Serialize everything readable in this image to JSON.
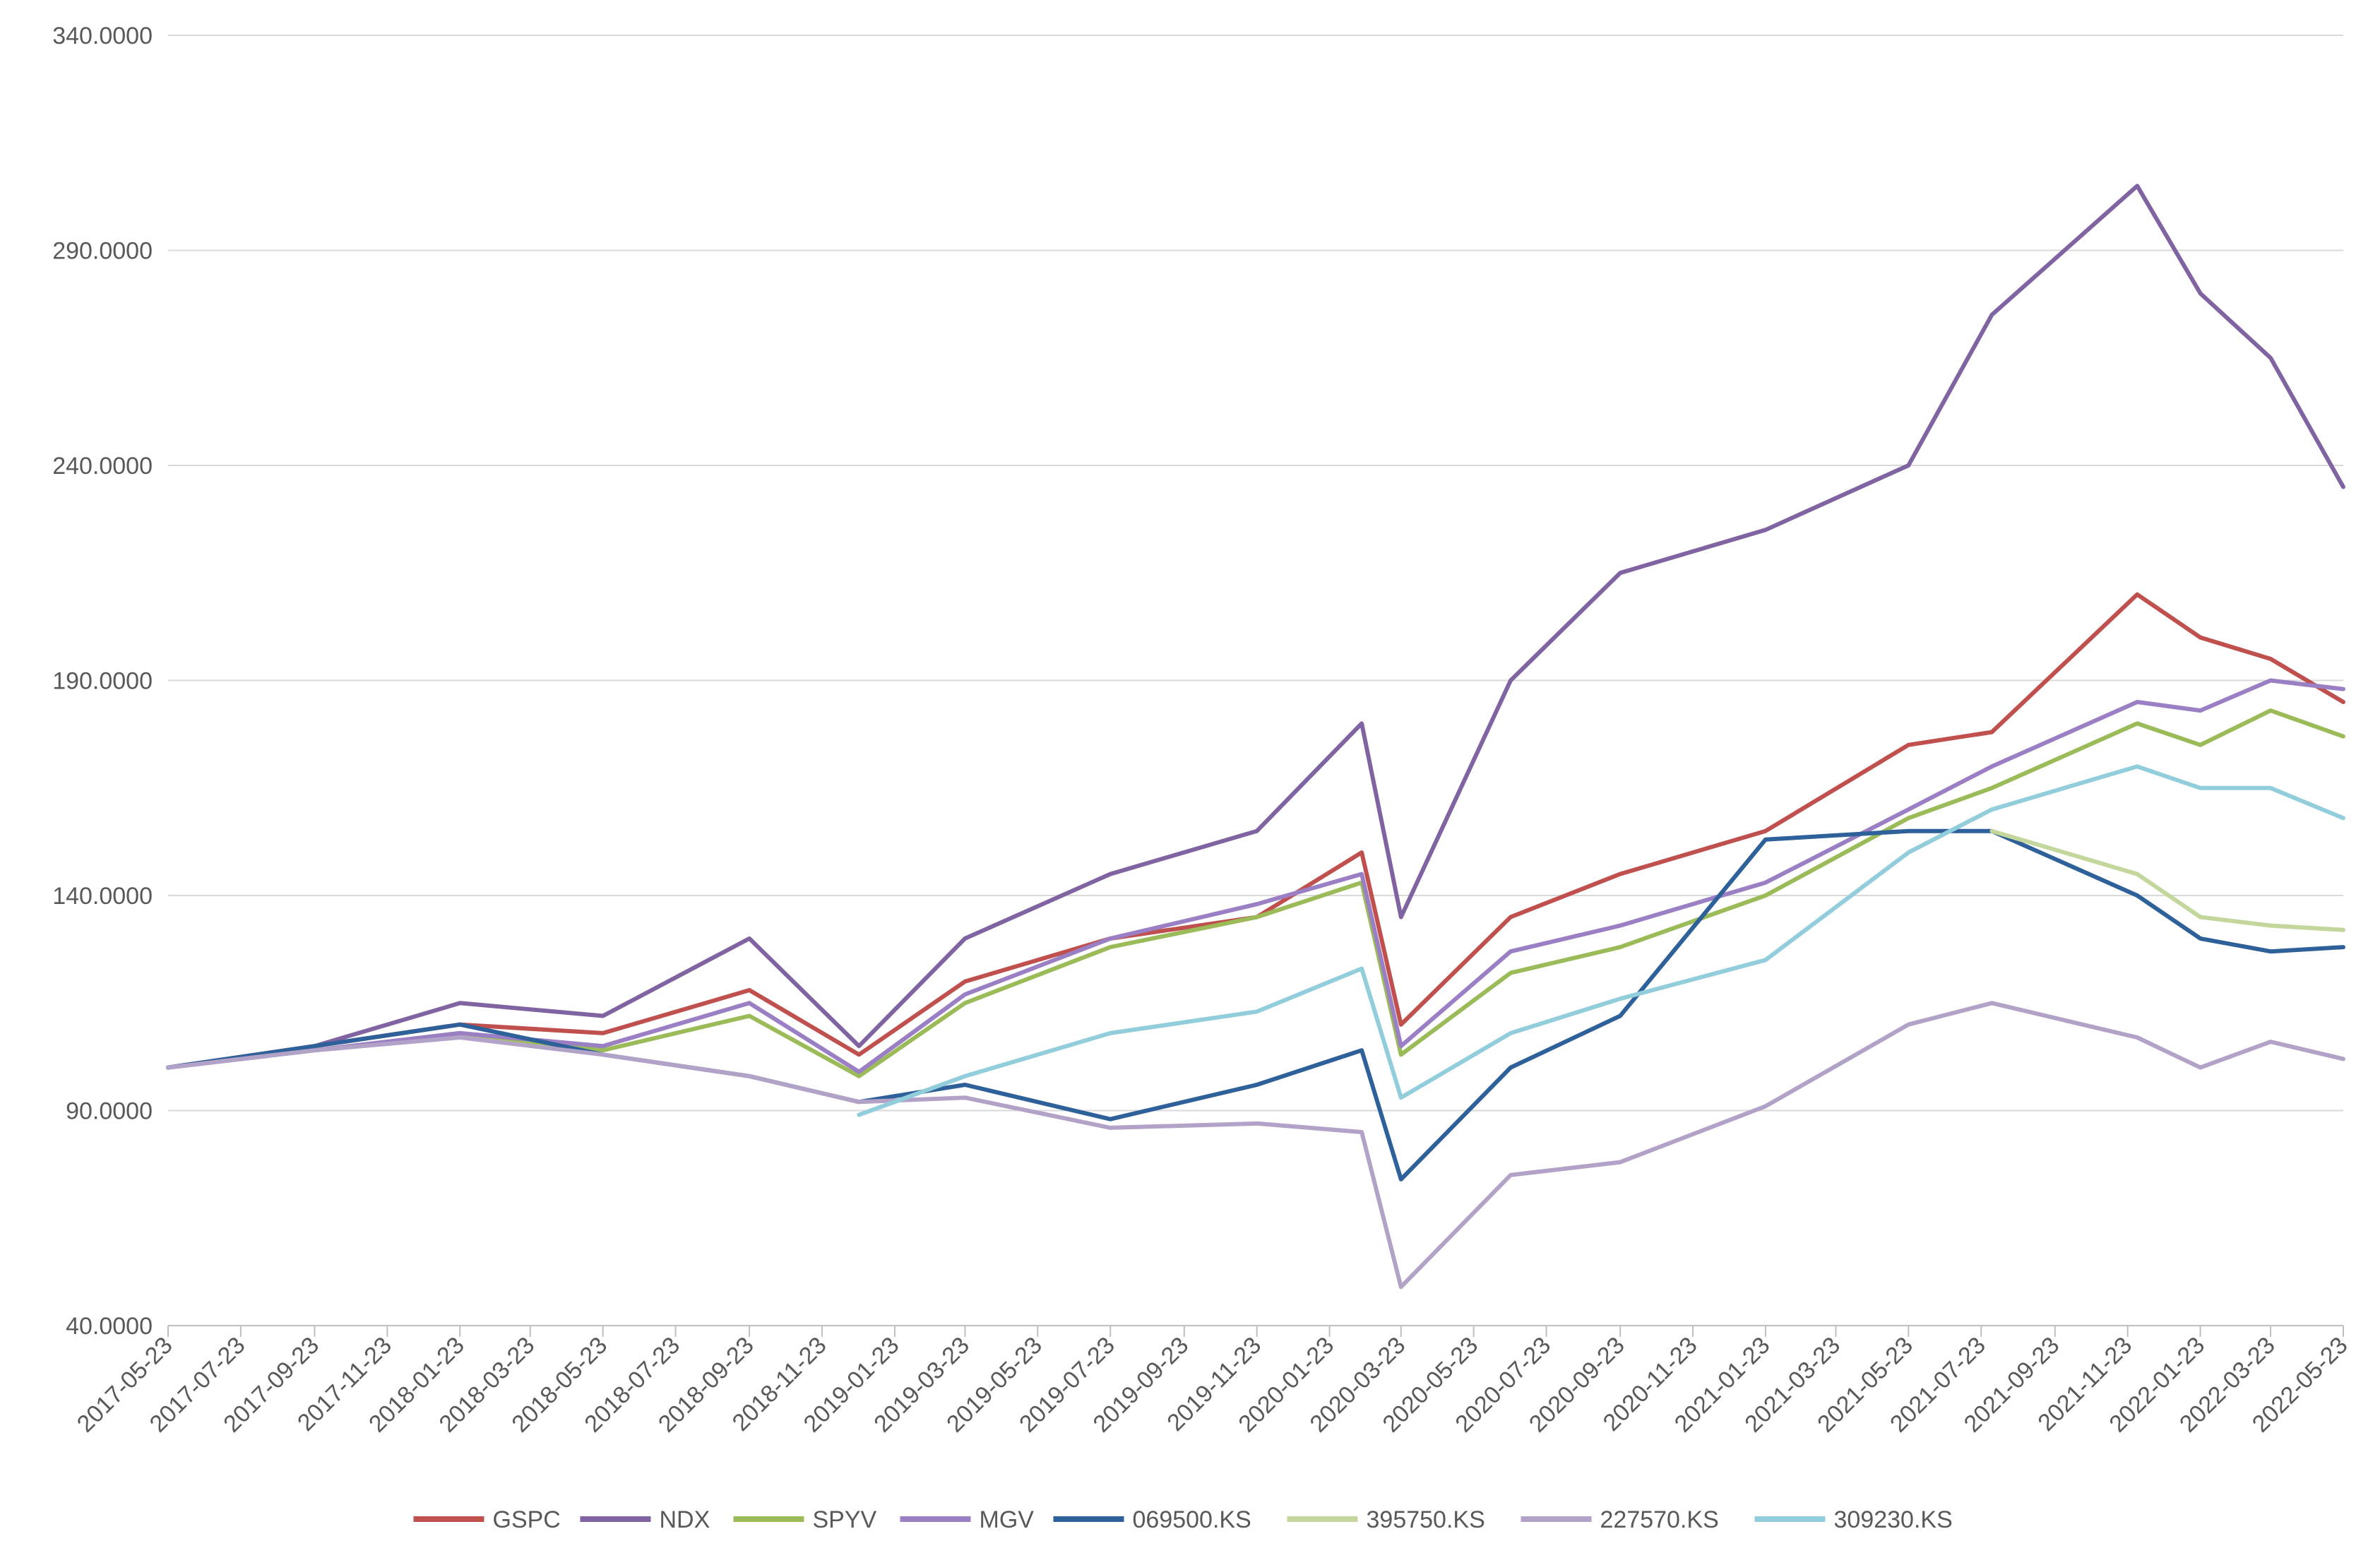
{
  "chart_data": {
    "type": "line",
    "title": "",
    "xlabel": "",
    "ylabel": "",
    "ylim": [
      40,
      340
    ],
    "yticks": [
      "40.0000",
      "90.0000",
      "140.0000",
      "190.0000",
      "240.0000",
      "290.0000",
      "340.0000"
    ],
    "xticks": [
      "2017-05-23",
      "2017-07-23",
      "2017-09-23",
      "2017-11-23",
      "2018-01-23",
      "2018-03-23",
      "2018-05-23",
      "2018-07-23",
      "2018-09-23",
      "2018-11-23",
      "2019-01-23",
      "2019-03-23",
      "2019-05-23",
      "2019-07-23",
      "2019-09-23",
      "2019-11-23",
      "2020-01-23",
      "2020-03-23",
      "2020-05-23",
      "2020-07-23",
      "2020-09-23",
      "2020-11-23",
      "2021-01-23",
      "2021-03-23",
      "2021-05-23",
      "2021-07-23",
      "2021-09-23",
      "2021-11-23",
      "2022-01-23",
      "2022-03-23",
      "2022-05-23"
    ],
    "grid": "horizontal",
    "legend": "bottom",
    "x_dates": [
      "2017-05-23",
      "2017-09-23",
      "2018-01-23",
      "2018-05-23",
      "2018-09-23",
      "2018-12-24",
      "2019-03-23",
      "2019-07-23",
      "2019-11-23",
      "2020-02-19",
      "2020-03-23",
      "2020-06-23",
      "2020-09-23",
      "2021-01-23",
      "2021-05-23",
      "2021-08-01",
      "2021-12-01",
      "2022-01-23",
      "2022-03-23",
      "2022-05-23"
    ],
    "series": [
      {
        "name": "GSPC",
        "color": "#c0504d",
        "values": [
          100,
          105,
          110,
          108,
          118,
          103,
          120,
          130,
          135,
          150,
          110,
          135,
          145,
          155,
          175,
          178,
          210,
          200,
          195,
          185
        ]
      },
      {
        "name": "NDX",
        "color": "#8064a2",
        "values": [
          100,
          105,
          115,
          112,
          130,
          105,
          130,
          145,
          155,
          180,
          135,
          190,
          215,
          225,
          240,
          275,
          305,
          280,
          265,
          235
        ]
      },
      {
        "name": "SPYV",
        "color": "#9bbb59",
        "values": [
          100,
          104,
          108,
          104,
          112,
          98,
          115,
          128,
          135,
          143,
          103,
          122,
          128,
          140,
          158,
          165,
          180,
          175,
          183,
          177
        ]
      },
      {
        "name": "MGV",
        "color": "#9b7fc4",
        "values": [
          100,
          104,
          108,
          105,
          115,
          99,
          117,
          130,
          138,
          145,
          105,
          127,
          133,
          143,
          160,
          170,
          185,
          183,
          190,
          188
        ]
      },
      {
        "name": "069500.KS",
        "color": "#2e6199",
        "values": [
          100,
          105,
          110,
          103,
          98,
          92,
          96,
          88,
          96,
          104,
          74,
          100,
          112,
          153,
          155,
          155,
          140,
          130,
          127,
          128
        ]
      },
      {
        "name": "395750.KS",
        "color": "#c3d69b",
        "values": [
          null,
          null,
          null,
          null,
          null,
          null,
          null,
          null,
          null,
          null,
          null,
          null,
          null,
          null,
          null,
          155,
          145,
          135,
          133,
          132
        ]
      },
      {
        "name": "227570.KS",
        "color": "#b3a2c7",
        "values": [
          100,
          104,
          107,
          103,
          98,
          92,
          93,
          86,
          87,
          85,
          49,
          75,
          78,
          91,
          110,
          115,
          107,
          100,
          106,
          102
        ]
      },
      {
        "name": "309230.KS",
        "color": "#92cddc",
        "values": [
          null,
          null,
          null,
          null,
          null,
          89,
          98,
          108,
          113,
          123,
          93,
          108,
          116,
          125,
          150,
          160,
          170,
          165,
          165,
          158
        ]
      }
    ]
  }
}
